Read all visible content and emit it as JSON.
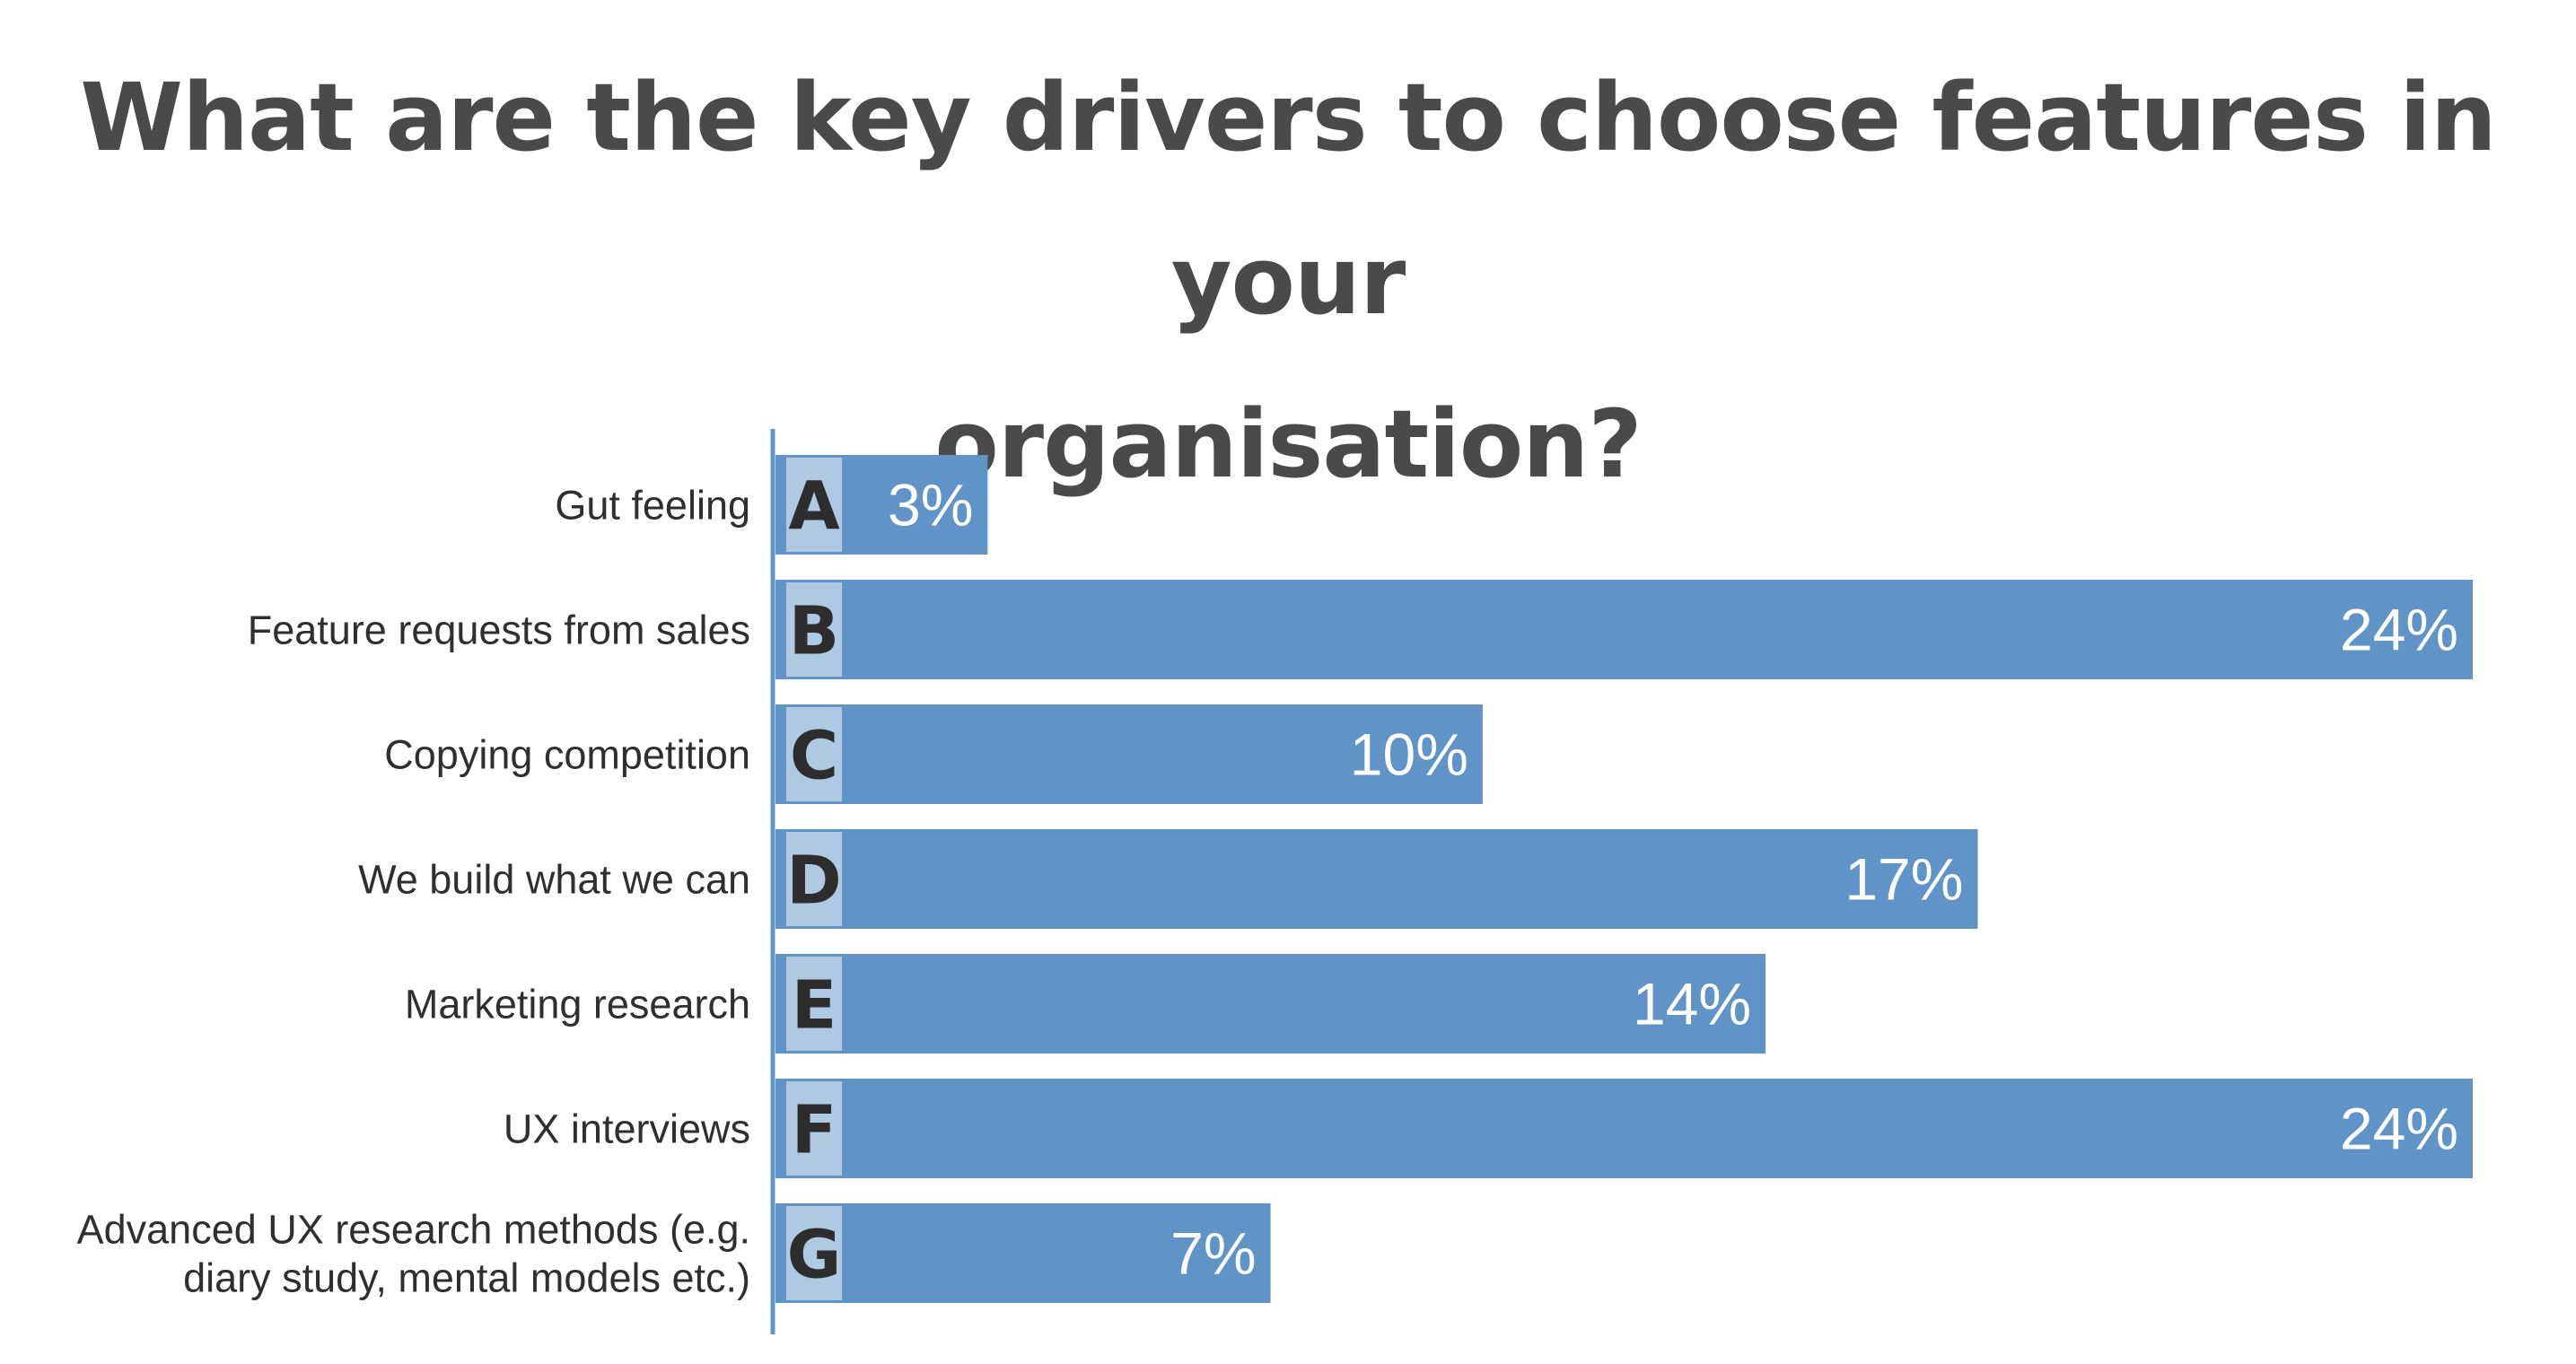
{
  "chart_data": {
    "type": "bar",
    "orientation": "horizontal",
    "title_lines": [
      "What are the key drivers to choose features in your",
      "organisation?"
    ],
    "categories": [
      [
        "Gut feeling"
      ],
      [
        "Feature requests from sales"
      ],
      [
        "Copying competition"
      ],
      [
        "We build what we can"
      ],
      [
        "Marketing research"
      ],
      [
        "UX interviews"
      ],
      [
        "Advanced UX research methods (e.g.",
        "diary study, mental models etc.)"
      ]
    ],
    "letters": [
      "A",
      "B",
      "C",
      "D",
      "E",
      "F",
      "G"
    ],
    "values": [
      3,
      24,
      10,
      17,
      14,
      24,
      7
    ],
    "value_labels": [
      "3%",
      "24%",
      "10%",
      "17%",
      "14%",
      "24%",
      "7%"
    ],
    "xlim": [
      0,
      24
    ],
    "grid": false,
    "legend": "none",
    "colors": {
      "bar": "#6194c6",
      "letter_box": "#b0c9e3",
      "axis": "#6194c6",
      "title": "#4a4a4a",
      "label": "#2f2f2f",
      "value_text": "#ffffff"
    }
  }
}
